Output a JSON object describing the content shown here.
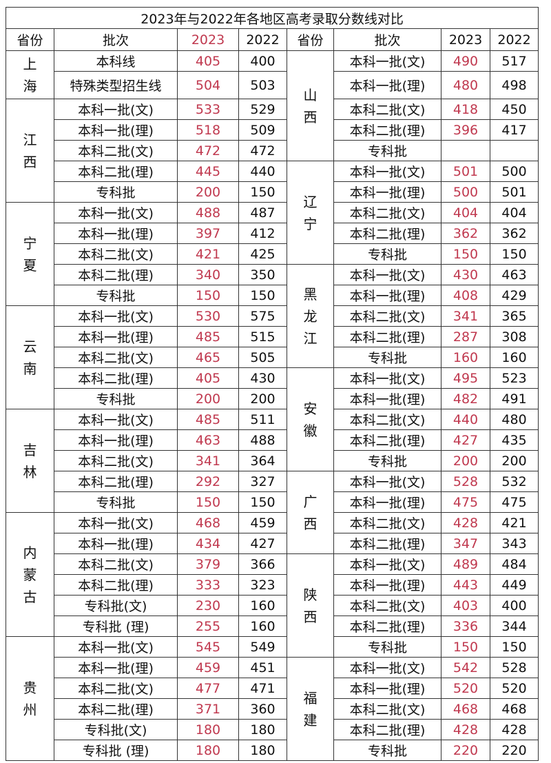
{
  "title": "2023年与2022年各地区高考录取分数线对比",
  "headers": [
    "省份",
    "批次",
    "2023",
    "2022",
    "省份",
    "批次",
    "2023",
    "2022"
  ],
  "colors": {
    "highlight_2023": "#c0394f",
    "text": "#111111",
    "border": "#333333"
  },
  "left": [
    {
      "province": "上海",
      "rows": [
        [
          "本科线",
          "405",
          "400"
        ],
        [
          "特殊类型招生线",
          "504",
          "503"
        ]
      ]
    },
    {
      "province": "江西",
      "rows": [
        [
          "本科一批(文)",
          "533",
          "529"
        ],
        [
          "本科一批(理)",
          "518",
          "509"
        ],
        [
          "本科二批(文)",
          "472",
          "472"
        ],
        [
          "本科二批(理)",
          "445",
          "440"
        ],
        [
          "专科批",
          "200",
          "150"
        ]
      ]
    },
    {
      "province": "宁夏",
      "rows": [
        [
          "本科一批(文)",
          "488",
          "487"
        ],
        [
          "本科一批(理)",
          "397",
          "412"
        ],
        [
          "本科二批(文)",
          "421",
          "425"
        ],
        [
          "本科二批(理)",
          "340",
          "350"
        ],
        [
          "专科批",
          "150",
          "150"
        ]
      ]
    },
    {
      "province": "云南",
      "rows": [
        [
          "本科一批(文)",
          "530",
          "575"
        ],
        [
          "本科一批(理)",
          "485",
          "515"
        ],
        [
          "本科二批(文)",
          "465",
          "505"
        ],
        [
          "本科二批(理)",
          "405",
          "430"
        ],
        [
          "专科批",
          "200",
          "200"
        ]
      ]
    },
    {
      "province": "吉林",
      "rows": [
        [
          "本科一批(文)",
          "485",
          "511"
        ],
        [
          "本科一批(理)",
          "463",
          "488"
        ],
        [
          "本科二批(文)",
          "341",
          "364"
        ],
        [
          "本科二批(理)",
          "292",
          "327"
        ],
        [
          "专科批",
          "150",
          "150"
        ]
      ]
    },
    {
      "province": "内蒙古",
      "rows": [
        [
          "本科一批(文)",
          "468",
          "459"
        ],
        [
          "本科一批(理)",
          "434",
          "427"
        ],
        [
          "本科二批(文)",
          "379",
          "366"
        ],
        [
          "本科二批(理)",
          "333",
          "323"
        ],
        [
          "专科批(文)",
          "230",
          "160"
        ],
        [
          "专科批 (理)",
          "255",
          "160"
        ]
      ]
    },
    {
      "province": "贵州",
      "rows": [
        [
          "本科一批(文)",
          "545",
          "549"
        ],
        [
          "本科一批(理)",
          "459",
          "451"
        ],
        [
          "本科二批(文)",
          "477",
          "471"
        ],
        [
          "本科二批(理)",
          "371",
          "360"
        ],
        [
          "专科批(文)",
          "180",
          "180"
        ],
        [
          "专科批 (理)",
          "180",
          "180"
        ]
      ]
    }
  ],
  "right": [
    {
      "province": "山西",
      "rows": [
        [
          "本科一批(文)",
          "490",
          "517"
        ],
        [
          "本科一批(理)",
          "480",
          "498"
        ],
        [
          "本科二批(文)",
          "418",
          "450"
        ],
        [
          "本科二批(理)",
          "396",
          "417"
        ],
        [
          "专科批",
          "",
          ""
        ]
      ]
    },
    {
      "province": "辽宁",
      "rows": [
        [
          "本科一批(文)",
          "501",
          "500"
        ],
        [
          "本科一批(理)",
          "500",
          "501"
        ],
        [
          "本科二批(文)",
          "404",
          "404"
        ],
        [
          "本科二批(理)",
          "362",
          "362"
        ],
        [
          "专科批",
          "150",
          "150"
        ]
      ]
    },
    {
      "province": "黑龙江",
      "rows": [
        [
          "本科一批(文)",
          "430",
          "463"
        ],
        [
          "本科一批(理)",
          "408",
          "429"
        ],
        [
          "本科二批(文)",
          "341",
          "365"
        ],
        [
          "本科二批(理)",
          "287",
          "308"
        ],
        [
          "专科批",
          "160",
          "160"
        ]
      ]
    },
    {
      "province": "安徽",
      "rows": [
        [
          "本科一批(文)",
          "495",
          "523"
        ],
        [
          "本科一批(理)",
          "482",
          "491"
        ],
        [
          "本科二批(文)",
          "440",
          "480"
        ],
        [
          "本科二批(理)",
          "427",
          "435"
        ],
        [
          "专科批",
          "200",
          "200"
        ]
      ]
    },
    {
      "province": "广西",
      "rows": [
        [
          "本科一批(文)",
          "528",
          "532"
        ],
        [
          "本科一批(理)",
          "475",
          "475"
        ],
        [
          "本科二批(文)",
          "428",
          "421"
        ],
        [
          "本科二批(理)",
          "347",
          "343"
        ]
      ]
    },
    {
      "province": "陕西",
      "rows": [
        [
          "本科一批(文)",
          "489",
          "484"
        ],
        [
          "本科一批(理)",
          "443",
          "449"
        ],
        [
          "本科二批(文)",
          "403",
          "400"
        ],
        [
          "本科二批(理)",
          "336",
          "344"
        ],
        [
          "专科批",
          "150",
          "150"
        ]
      ]
    },
    {
      "province": "福建",
      "rows": [
        [
          "本科一批(文)",
          "542",
          "528"
        ],
        [
          "本科一批(理)",
          "520",
          "520"
        ],
        [
          "本科二批(文)",
          "468",
          "468"
        ],
        [
          "本科二批(理)",
          "428",
          "428"
        ],
        [
          "专科批",
          "220",
          "220"
        ]
      ]
    }
  ]
}
